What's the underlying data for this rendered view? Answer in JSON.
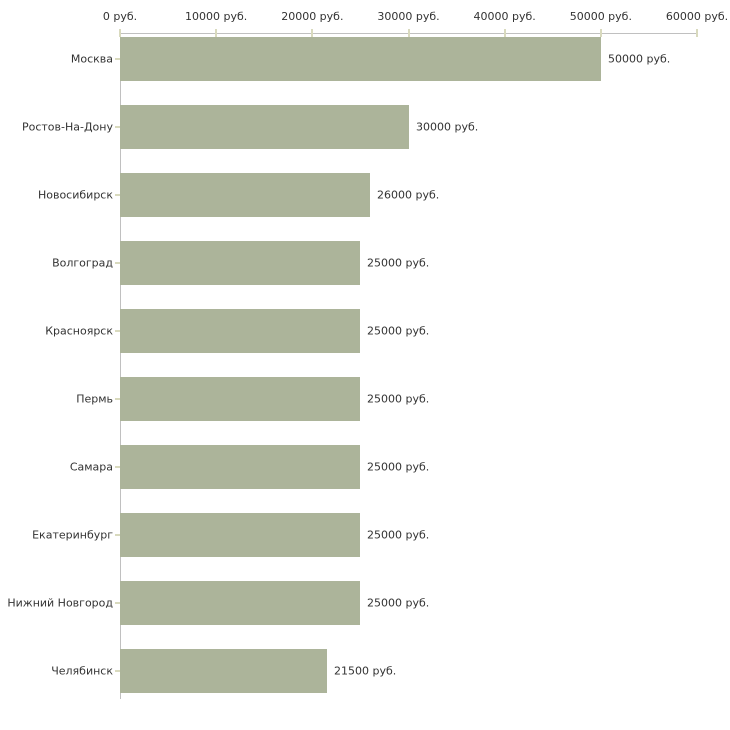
{
  "chart_data": {
    "type": "bar",
    "orientation": "horizontal",
    "title": "",
    "xlabel": "",
    "ylabel": "",
    "unit": "руб.",
    "categories": [
      "Москва",
      "Ростов-На-Дону",
      "Новосибирск",
      "Волгоград",
      "Красноярск",
      "Пермь",
      "Самара",
      "Екатеринбург",
      "Нижний Новгород",
      "Челябинск"
    ],
    "values": [
      50000,
      30000,
      26000,
      25000,
      25000,
      25000,
      25000,
      25000,
      25000,
      21500
    ],
    "value_labels": [
      "50000 руб.",
      "30000 руб.",
      "26000 руб.",
      "25000 руб.",
      "25000 руб.",
      "25000 руб.",
      "25000 руб.",
      "25000 руб.",
      "25000 руб.",
      "21500 руб."
    ],
    "xlim": [
      0,
      60000
    ],
    "x_ticks": [
      0,
      10000,
      20000,
      30000,
      40000,
      50000,
      60000
    ],
    "x_tick_labels": [
      "0 руб.",
      "10000 руб.",
      "20000 руб.",
      "30000 руб.",
      "40000 руб.",
      "50000 руб.",
      "60000 руб."
    ],
    "axis_position": "top",
    "grid": false,
    "legend": null,
    "colors": {
      "bar": "#acb49a",
      "axis_line": "#c0c0c0",
      "tick_mark": "#d9dabe",
      "text": "#333333",
      "background": "#ffffff"
    }
  }
}
